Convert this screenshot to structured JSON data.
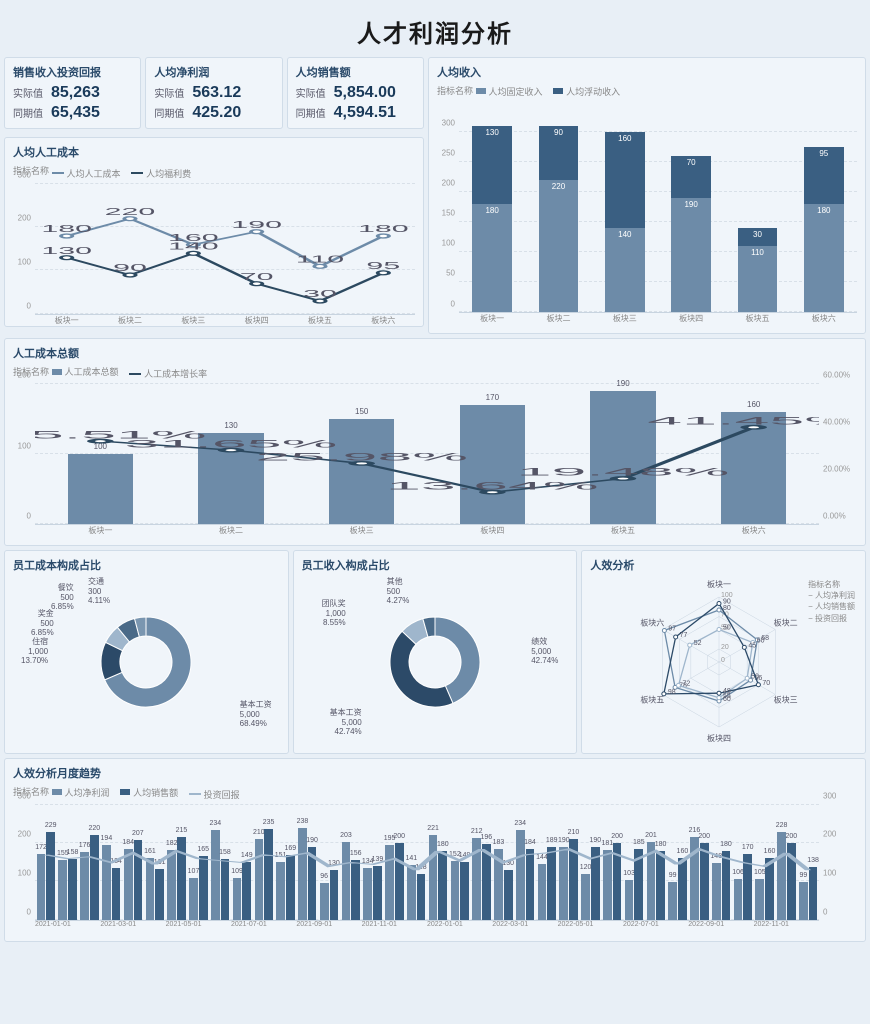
{
  "title": "人才利润分析",
  "colors": {
    "c1": "#6d8ba8",
    "c2": "#3a5f82",
    "c3": "#9fb6cc",
    "c4": "#2c4a68",
    "line_dark": "#2c4960",
    "bg": "#f0f5fa"
  },
  "kpis": [
    {
      "title": "销售收入投资回报",
      "actual_lbl": "实际值",
      "actual": "85,263",
      "period_lbl": "同期值",
      "period": "65,435"
    },
    {
      "title": "人均净利润",
      "actual_lbl": "实际值",
      "actual": "563.12",
      "period_lbl": "同期值",
      "period": "425.20"
    },
    {
      "title": "人均销售额",
      "actual_lbl": "实际值",
      "actual": "5,854.00",
      "period_lbl": "同期值",
      "period": "4,594.51"
    }
  ],
  "avg_income": {
    "title": "人均收入",
    "legend_lbl": "指标名称",
    "series_names": [
      "人均固定收入",
      "人均浮动收入"
    ],
    "cats": [
      "板块一",
      "板块二",
      "板块三",
      "板块四",
      "板块五",
      "板块六"
    ],
    "s1": [
      180,
      220,
      140,
      190,
      110,
      180
    ],
    "s2": [
      130,
      90,
      160,
      70,
      30,
      95
    ],
    "ymax": 350,
    "yticks": [
      0,
      50,
      100,
      150,
      200,
      250,
      300
    ]
  },
  "avg_cost": {
    "title": "人均人工成本",
    "legend_lbl": "指标名称",
    "series_names": [
      "人均人工成本",
      "人均福利费"
    ],
    "cats": [
      "板块一",
      "板块二",
      "板块三",
      "板块四",
      "板块五",
      "板块六"
    ],
    "s1": [
      180,
      220,
      160,
      190,
      110,
      180
    ],
    "s2": [
      130,
      90,
      140,
      70,
      30,
      95
    ],
    "ymax": 300,
    "yticks": [
      0,
      100,
      200,
      300
    ]
  },
  "total_cost": {
    "title": "人工成本总额",
    "legend_lbl": "指标名称",
    "series_names": [
      "人工成本总额",
      "人工成本增长率"
    ],
    "cats": [
      "板块一",
      "板块二",
      "板块三",
      "板块四",
      "板块五",
      "板块六"
    ],
    "bars": [
      100,
      130,
      150,
      170,
      190,
      160
    ],
    "rates": [
      "35.51%",
      "31.65%",
      "25.98%",
      "13.64%",
      "19.48%",
      "41.45%"
    ],
    "rate_vals": [
      35.51,
      31.65,
      25.98,
      13.64,
      19.48,
      41.45
    ],
    "ymax": 200,
    "yticks": [
      0,
      100,
      200
    ],
    "rmax": 60,
    "rticks": [
      "0.00%",
      "20.00%",
      "40.00%",
      "60.00%"
    ]
  },
  "cost_pie": {
    "title": "员工成本构成占比",
    "items": [
      {
        "name": "基本工资",
        "val": "5,000",
        "pct": "68.49%",
        "v": 5000,
        "color": "#6d8ba8"
      },
      {
        "name": "住宿",
        "val": "1,000",
        "pct": "13.70%",
        "v": 1000,
        "color": "#2c4a68"
      },
      {
        "name": "奖金",
        "val": "500",
        "pct": "6.85%",
        "v": 500,
        "color": "#9fb6cc"
      },
      {
        "name": "餐饮",
        "val": "500",
        "pct": "6.85%",
        "v": 500,
        "color": "#4a6a88"
      },
      {
        "name": "交通",
        "val": "300",
        "pct": "4.11%",
        "v": 300,
        "color": "#7a96b0"
      }
    ]
  },
  "income_pie": {
    "title": "员工收入构成占比",
    "items": [
      {
        "name": "绩效",
        "val": "5,000",
        "pct": "42.74%",
        "v": 5000,
        "color": "#6d8ba8"
      },
      {
        "name": "基本工资",
        "val": "5,000",
        "pct": "42.74%",
        "v": 5000,
        "color": "#2c4a68"
      },
      {
        "name": "团队奖",
        "val": "1,000",
        "pct": "8.55%",
        "v": 1000,
        "color": "#9fb6cc"
      },
      {
        "name": "其他",
        "val": "500",
        "pct": "4.27%",
        "v": 500,
        "color": "#4a6a88"
      }
    ]
  },
  "radar": {
    "title": "人效分析",
    "legend_lbl": "指标名称",
    "series_names": [
      "人均净利润",
      "人均销售额",
      "投资回报"
    ],
    "axes": [
      "板块一",
      "板块二",
      "板块三",
      "板块四",
      "板块五",
      "板块六"
    ],
    "max": 100,
    "rings": [
      0,
      20,
      50,
      70,
      100
    ],
    "d1": [
      80,
      68,
      56,
      60,
      78,
      97
    ],
    "d2": [
      50,
      60,
      50,
      55,
      72,
      52
    ],
    "d3": [
      90,
      45,
      70,
      48,
      98,
      77
    ]
  },
  "trend": {
    "title": "人效分析月度趋势",
    "legend_lbl": "指标名称",
    "series_names": [
      "人均净利润",
      "人均销售额",
      "投资回报"
    ],
    "ymax": 300,
    "yticks": [
      0,
      100,
      200,
      300
    ],
    "rticks": [
      0,
      100,
      200,
      300
    ],
    "xlabels": [
      "2021-01-01",
      "2021-03-01",
      "2021-05-01",
      "2021-07-01",
      "2021-09-01",
      "2021-11-01",
      "2022-01-01",
      "2022-03-01",
      "2022-05-01",
      "2022-07-01",
      "2022-09-01",
      "2022-11-01"
    ],
    "s1": [
      172,
      155,
      176,
      194,
      184,
      161,
      182,
      107,
      234,
      109,
      210,
      151,
      238,
      96,
      203,
      134,
      195,
      141,
      221,
      152,
      212,
      183,
      234,
      144,
      190,
      120,
      181,
      103,
      201,
      99,
      216,
      148,
      106,
      105,
      228,
      99
    ],
    "s2": [
      229,
      158,
      220,
      134,
      207,
      131,
      215,
      165,
      158,
      149,
      235,
      169,
      190,
      130,
      156,
      139,
      200,
      118,
      180,
      149,
      196,
      130,
      184,
      189,
      210,
      190,
      200,
      185,
      180,
      160,
      200,
      180,
      170,
      160,
      200,
      138
    ],
    "s3": [
      170,
      160,
      165,
      150,
      175,
      145,
      180,
      160,
      155,
      150,
      170,
      165,
      175,
      140,
      150,
      145,
      160,
      130,
      180,
      155,
      185,
      150,
      170,
      175,
      185,
      160,
      175,
      155,
      180,
      145,
      185,
      165,
      150,
      140,
      175,
      130
    ]
  }
}
